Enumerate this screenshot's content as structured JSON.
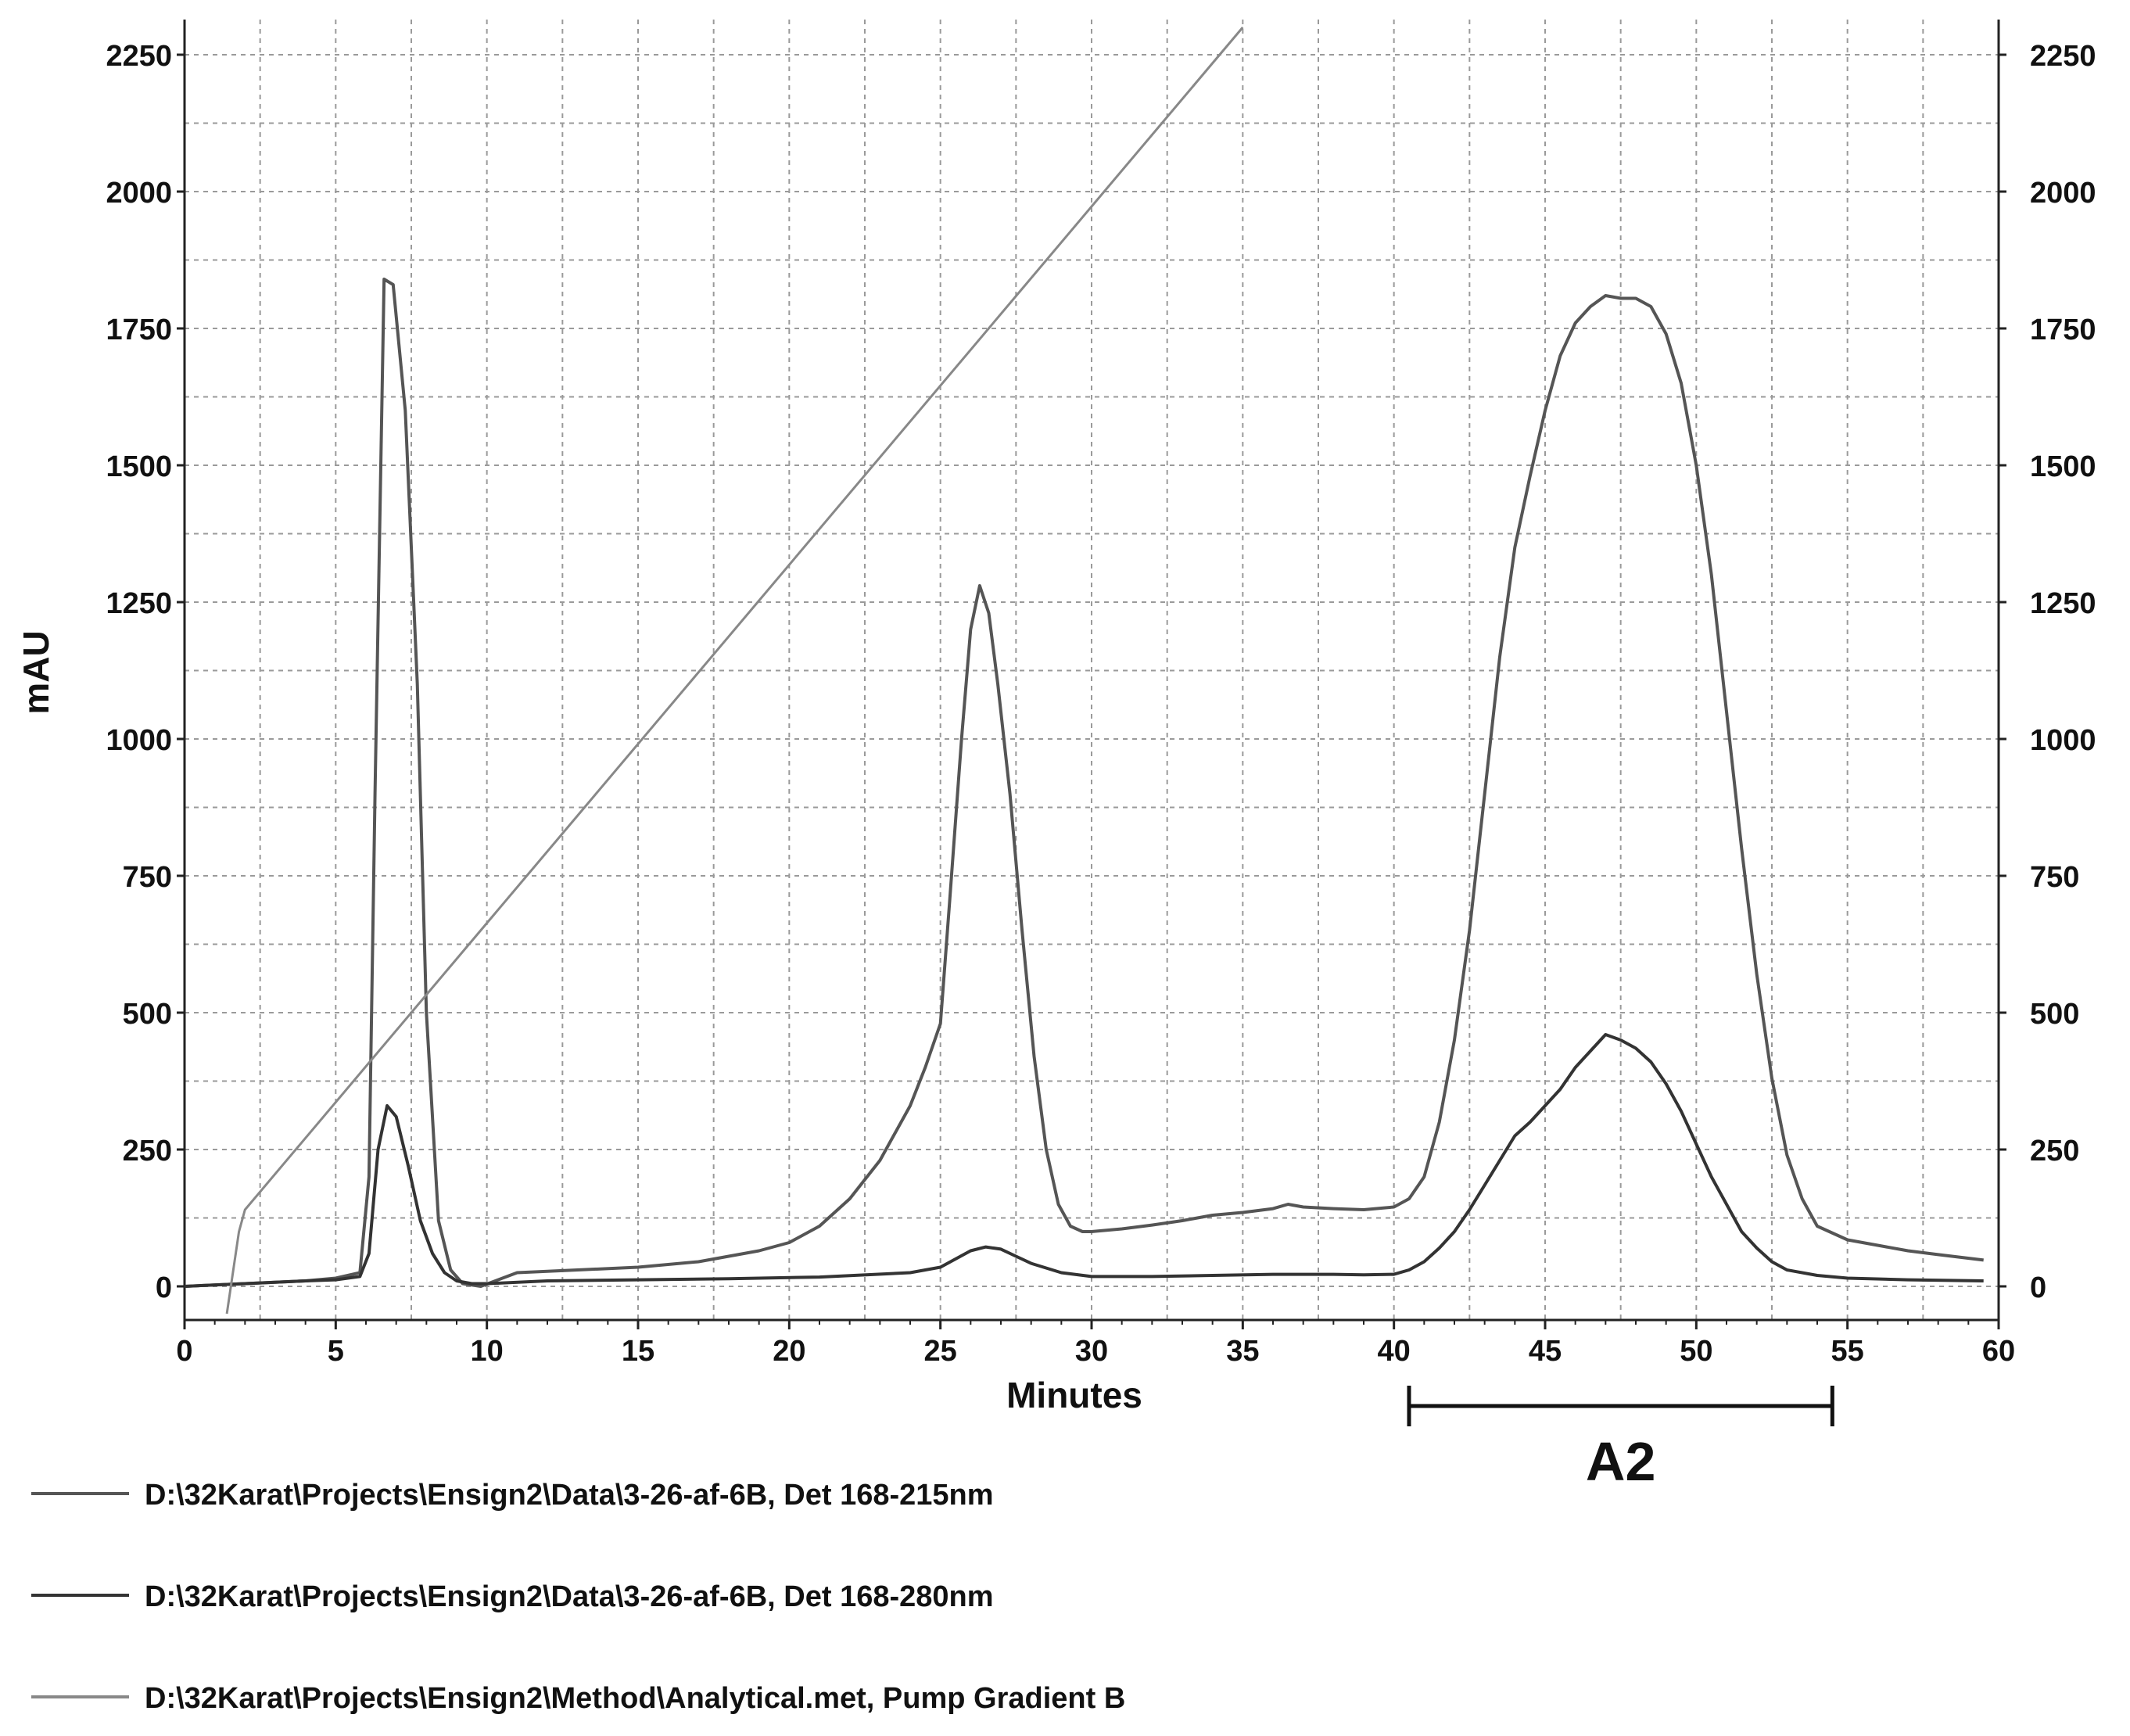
{
  "chart_data": {
    "type": "line",
    "xlabel": "Minutes",
    "ylabel": "mAU",
    "xlim": [
      0,
      60
    ],
    "ylim": [
      -50,
      2300
    ],
    "x_ticks": [
      0,
      5,
      10,
      15,
      20,
      25,
      30,
      35,
      40,
      45,
      50,
      55,
      60
    ],
    "y_ticks": [
      0,
      250,
      500,
      750,
      1000,
      1250,
      1500,
      1750,
      2000,
      2250
    ],
    "y_ticks_right": [
      0,
      250,
      500,
      750,
      1000,
      1250,
      1500,
      1750,
      2000,
      2250
    ],
    "grid": true,
    "legend_position": "bottom-left",
    "series": [
      {
        "name": "D:\\32Karat\\Projects\\Ensign2\\Data\\3-26-af-6B, Det 168-215nm",
        "color": "#555555",
        "x": [
          0,
          2,
          4,
          5,
          5.8,
          6.1,
          6.3,
          6.6,
          6.9,
          7.3,
          7.7,
          8.0,
          8.4,
          8.8,
          9.2,
          9.8,
          11,
          13,
          15,
          17,
          18,
          19,
          20,
          21,
          22,
          23,
          24,
          24.5,
          25,
          25.3,
          25.7,
          26,
          26.3,
          26.6,
          26.9,
          27.3,
          27.7,
          28.1,
          28.5,
          28.9,
          29.3,
          29.7,
          30,
          31,
          32,
          33,
          34,
          35,
          36,
          36.5,
          37,
          38,
          39,
          40,
          40.5,
          41,
          41.5,
          42,
          42.5,
          43,
          43.5,
          44,
          44.5,
          45,
          45.5,
          46,
          46.5,
          47,
          47.5,
          48,
          48.5,
          49,
          49.5,
          50,
          50.5,
          51,
          51.5,
          52,
          52.5,
          53,
          53.5,
          54,
          55,
          56,
          57,
          58,
          59.5
        ],
        "y": [
          0,
          5,
          10,
          15,
          25,
          200,
          900,
          1840,
          1830,
          1600,
          1100,
          500,
          120,
          30,
          5,
          0,
          25,
          30,
          35,
          45,
          55,
          65,
          80,
          110,
          160,
          230,
          330,
          400,
          480,
          700,
          1000,
          1200,
          1280,
          1230,
          1100,
          900,
          650,
          420,
          250,
          150,
          110,
          100,
          100,
          105,
          112,
          120,
          130,
          135,
          142,
          150,
          145,
          142,
          140,
          145,
          160,
          200,
          300,
          450,
          650,
          900,
          1150,
          1350,
          1480,
          1600,
          1700,
          1760,
          1790,
          1810,
          1805,
          1805,
          1790,
          1740,
          1650,
          1500,
          1300,
          1050,
          800,
          570,
          380,
          240,
          160,
          110,
          85,
          75,
          65,
          58,
          48
        ]
      },
      {
        "name": "D:\\32Karat\\Projects\\Ensign2\\Data\\3-26-af-6B, Det 168-280nm",
        "color": "#333333",
        "x": [
          0,
          2,
          4,
          5,
          5.8,
          6.1,
          6.4,
          6.7,
          7.0,
          7.4,
          7.8,
          8.2,
          8.6,
          9.0,
          9.5,
          10,
          12,
          15,
          18,
          21,
          24,
          25,
          25.5,
          26,
          26.5,
          27,
          27.5,
          28,
          29,
          30,
          32,
          34,
          36,
          38,
          39,
          40,
          40.5,
          41,
          41.5,
          42,
          42.5,
          43,
          43.5,
          44,
          44.5,
          45,
          45.5,
          46,
          46.5,
          47,
          47.5,
          48,
          48.5,
          49,
          49.5,
          50,
          50.5,
          51,
          51.5,
          52,
          52.5,
          53,
          54,
          55,
          57,
          59.5
        ],
        "y": [
          0,
          5,
          10,
          12,
          18,
          60,
          250,
          330,
          310,
          220,
          120,
          60,
          25,
          10,
          5,
          5,
          10,
          12,
          14,
          17,
          25,
          35,
          50,
          65,
          72,
          68,
          55,
          42,
          25,
          18,
          18,
          20,
          22,
          22,
          21,
          22,
          30,
          45,
          70,
          100,
          140,
          185,
          230,
          275,
          300,
          330,
          360,
          400,
          430,
          460,
          450,
          435,
          410,
          370,
          320,
          260,
          200,
          150,
          100,
          70,
          45,
          30,
          20,
          15,
          12,
          10
        ]
      },
      {
        "name": "D:\\32Karat\\Projects\\Ensign2\\Method\\Analytical.met, Pump Gradient B",
        "color": "#888888",
        "x": [
          1.4,
          1.8,
          2.0,
          35
        ],
        "y": [
          -50,
          100,
          140,
          2300
        ]
      }
    ],
    "annotations": [
      {
        "text": "A2",
        "x_start": 40.5,
        "x_end": 54.5
      }
    ]
  }
}
